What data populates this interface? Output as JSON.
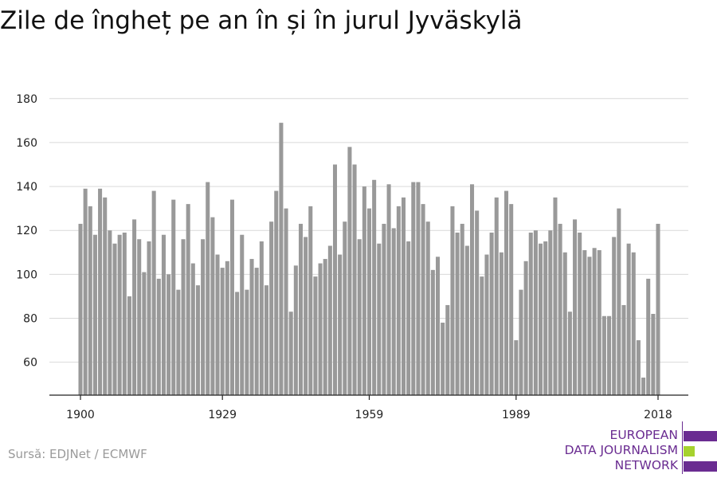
{
  "chart_data": {
    "type": "bar",
    "title": "Zile de îngheț pe an în și în jurul Jyväskylä",
    "x": [
      1900,
      1901,
      1902,
      1903,
      1904,
      1905,
      1906,
      1907,
      1908,
      1909,
      1910,
      1911,
      1912,
      1913,
      1914,
      1915,
      1916,
      1917,
      1918,
      1919,
      1920,
      1921,
      1922,
      1923,
      1924,
      1925,
      1926,
      1927,
      1928,
      1929,
      1930,
      1931,
      1932,
      1933,
      1934,
      1935,
      1936,
      1937,
      1938,
      1939,
      1940,
      1941,
      1942,
      1943,
      1944,
      1945,
      1946,
      1947,
      1948,
      1949,
      1950,
      1951,
      1952,
      1953,
      1954,
      1955,
      1956,
      1957,
      1958,
      1959,
      1960,
      1961,
      1962,
      1963,
      1964,
      1965,
      1966,
      1967,
      1968,
      1969,
      1970,
      1971,
      1972,
      1973,
      1974,
      1975,
      1976,
      1977,
      1978,
      1979,
      1980,
      1981,
      1982,
      1983,
      1984,
      1985,
      1986,
      1987,
      1988,
      1989,
      1990,
      1991,
      1992,
      1993,
      1994,
      1995,
      1996,
      1997,
      1998,
      1999,
      2000,
      2001,
      2002,
      2003,
      2004,
      2005,
      2006,
      2007,
      2008,
      2009,
      2010,
      2011,
      2012,
      2013,
      2014,
      2015,
      2016,
      2017,
      2018
    ],
    "values": [
      123,
      139,
      131,
      118,
      139,
      135,
      120,
      114,
      118,
      119,
      90,
      125,
      116,
      101,
      115,
      138,
      98,
      118,
      100,
      134,
      93,
      116,
      132,
      105,
      95,
      116,
      142,
      126,
      109,
      103,
      106,
      134,
      92,
      118,
      93,
      107,
      103,
      115,
      95,
      124,
      138,
      169,
      130,
      83,
      104,
      123,
      117,
      131,
      99,
      105,
      107,
      113,
      150,
      109,
      124,
      158,
      150,
      116,
      140,
      130,
      143,
      114,
      123,
      141,
      121,
      131,
      135,
      115,
      142,
      142,
      132,
      124,
      102,
      108,
      78,
      86,
      131,
      119,
      123,
      113,
      141,
      129,
      99,
      109,
      119,
      135,
      110,
      138,
      132,
      70,
      93,
      106,
      119,
      120,
      114,
      115,
      120,
      135,
      123,
      110,
      83,
      125,
      119,
      111,
      108,
      112,
      111,
      81,
      81,
      117,
      130,
      86,
      114,
      110,
      70,
      53,
      98,
      82,
      123
    ],
    "xticks": [
      "1900",
      "1929",
      "1959",
      "1989",
      "2018"
    ],
    "xtick_years": [
      1900,
      1929,
      1959,
      1989,
      2018
    ],
    "yticks": [
      "60",
      "80",
      "100",
      "120",
      "140",
      "160",
      "180"
    ],
    "ytick_values": [
      60,
      80,
      100,
      120,
      140,
      160,
      180
    ],
    "ylim": [
      45,
      185
    ],
    "xlim": [
      1900,
      2018
    ],
    "xlabel": "",
    "ylabel": "",
    "grid": true,
    "bar_color": "#999999"
  },
  "footer": {
    "source": "Sursă: EDJNet / ECMWF"
  },
  "logo": {
    "line1": "EUROPEAN",
    "line2": "DATA JOURNALISM",
    "line3": "NETWORK",
    "purple": "#6a2c91",
    "green": "#a6d22e"
  }
}
